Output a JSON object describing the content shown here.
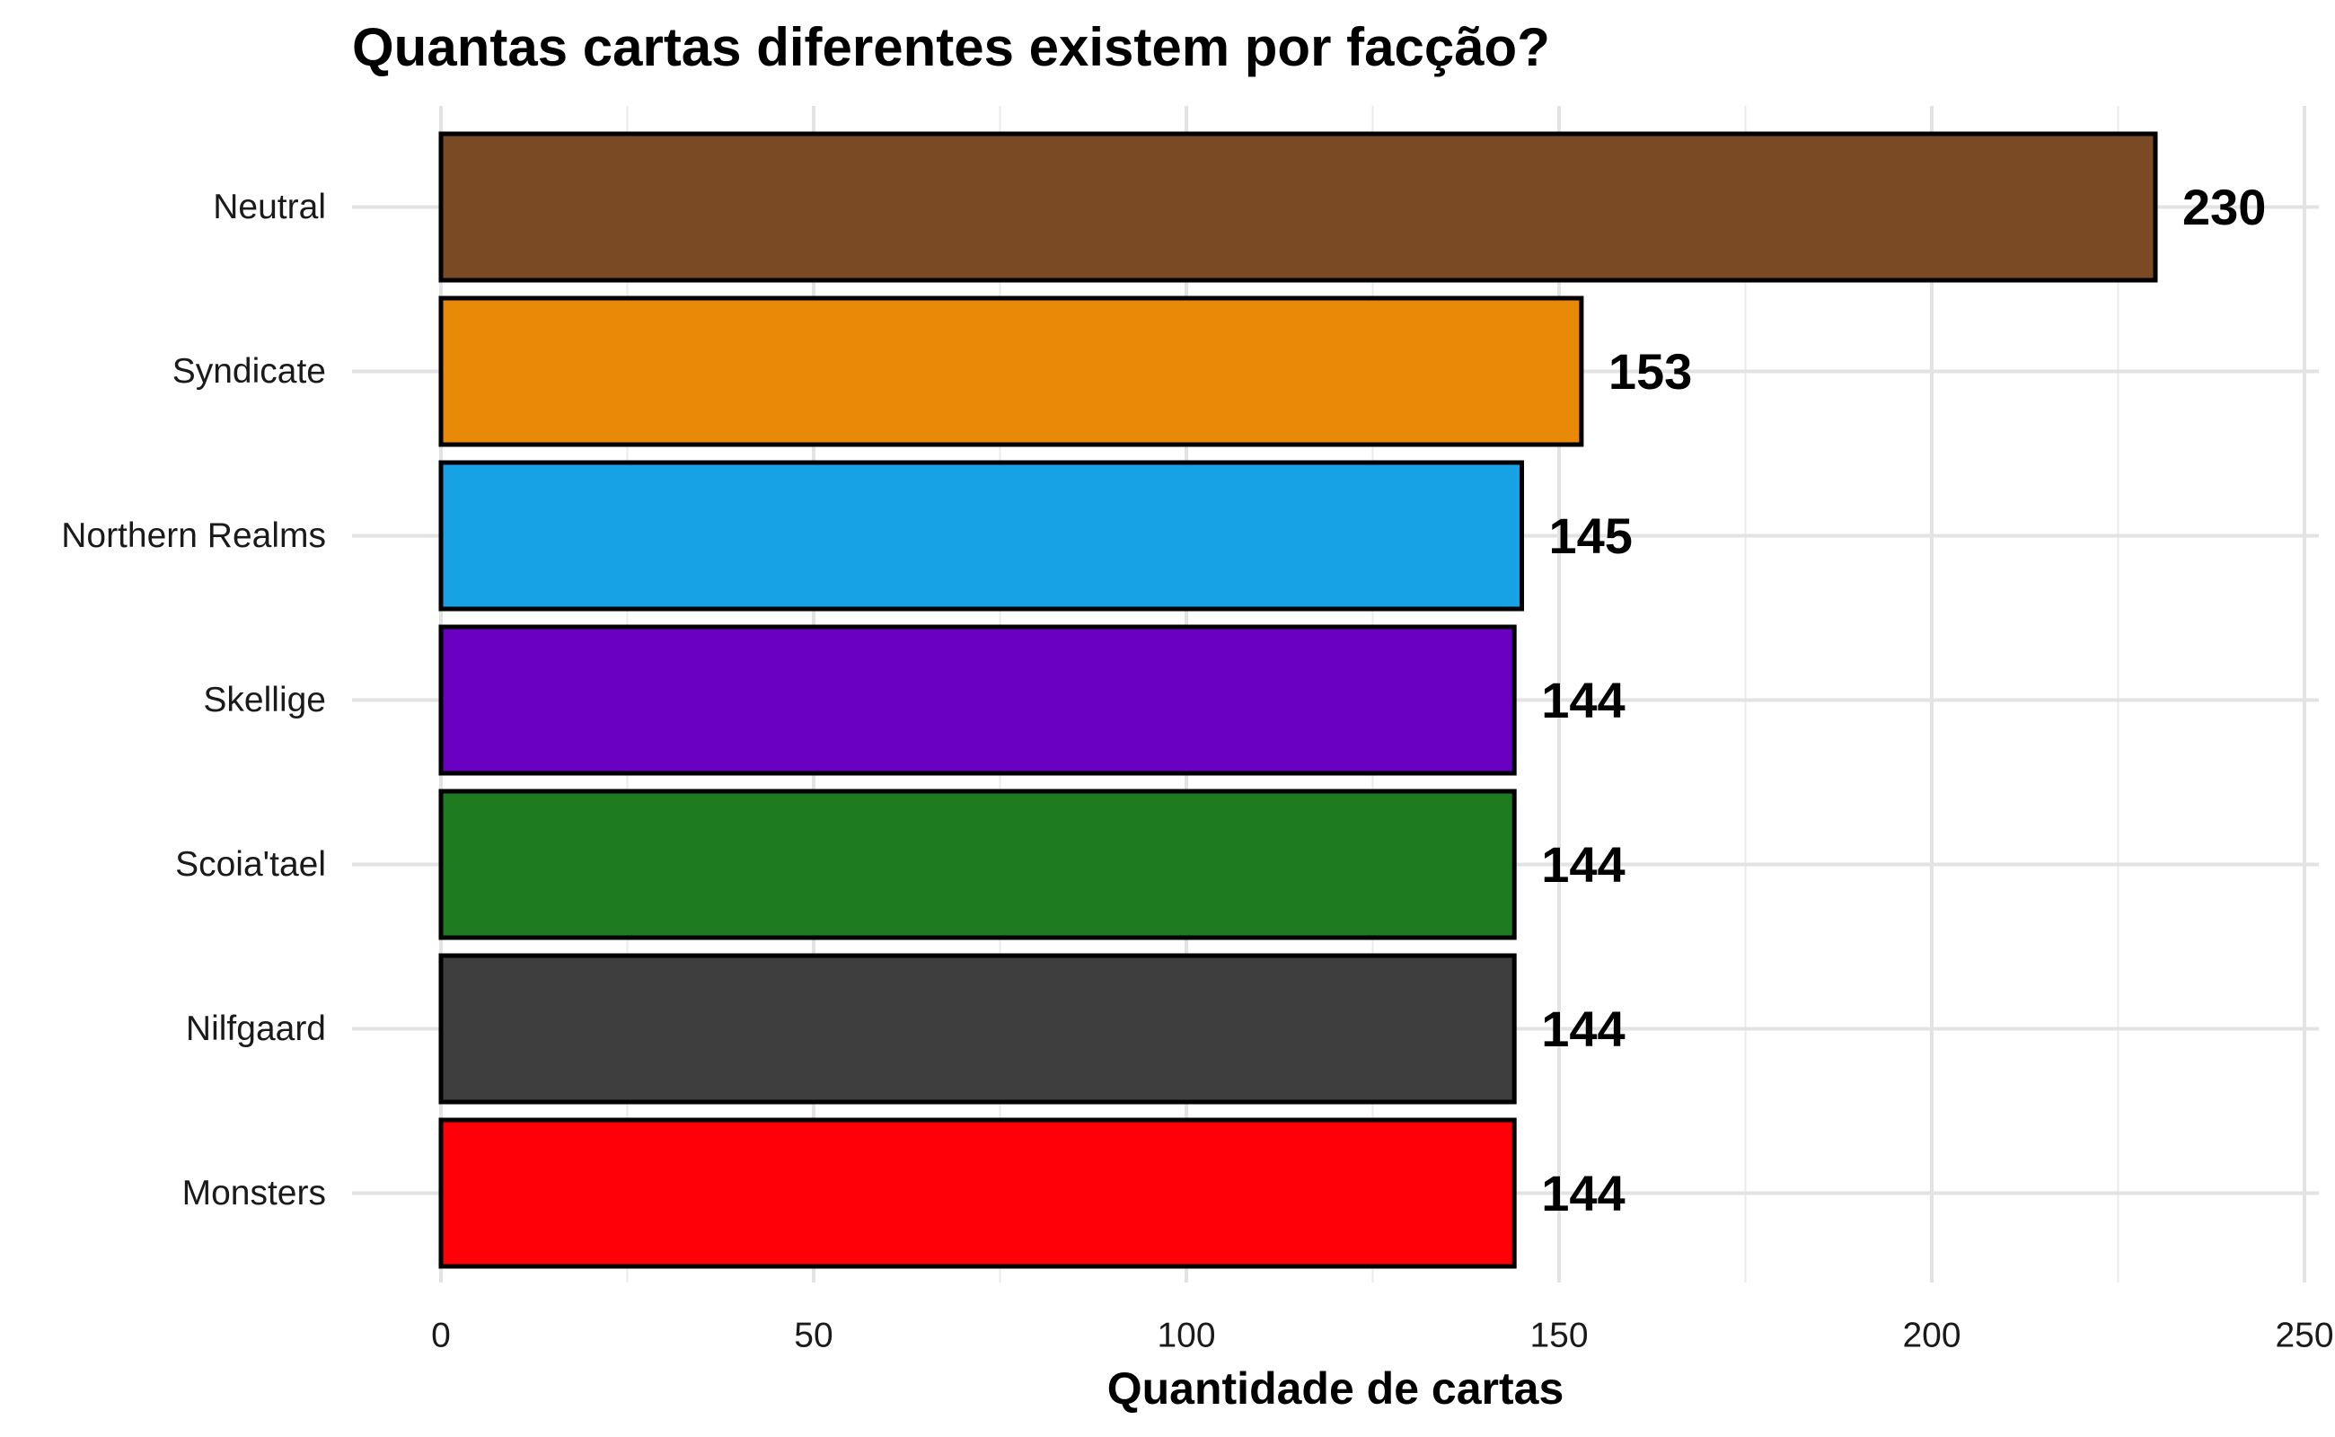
{
  "chart_data": {
    "type": "bar",
    "orientation": "horizontal",
    "title": "Quantas cartas diferentes existem por facção?",
    "xlabel": "Quantidade de cartas",
    "ylabel": "",
    "categories": [
      "Neutral",
      "Syndicate",
      "Northern Realms",
      "Skellige",
      "Scoia'tael",
      "Nilfgaard",
      "Monsters"
    ],
    "values": [
      230,
      153,
      145,
      144,
      144,
      144,
      144
    ],
    "value_labels": [
      "230",
      "153",
      "145",
      "144",
      "144",
      "144",
      "144"
    ],
    "colors": [
      "#7a4a24",
      "#e88a08",
      "#17a2e6",
      "#6a00c2",
      "#1f7b1f",
      "#3e3e3e",
      "#ff0008"
    ],
    "xlim": [
      0,
      250
    ],
    "x_ticks": [
      0,
      50,
      100,
      150,
      200,
      250
    ],
    "x_tick_labels": [
      "0",
      "50",
      "100",
      "150",
      "200",
      "250"
    ],
    "grid": true,
    "legend": "none"
  }
}
